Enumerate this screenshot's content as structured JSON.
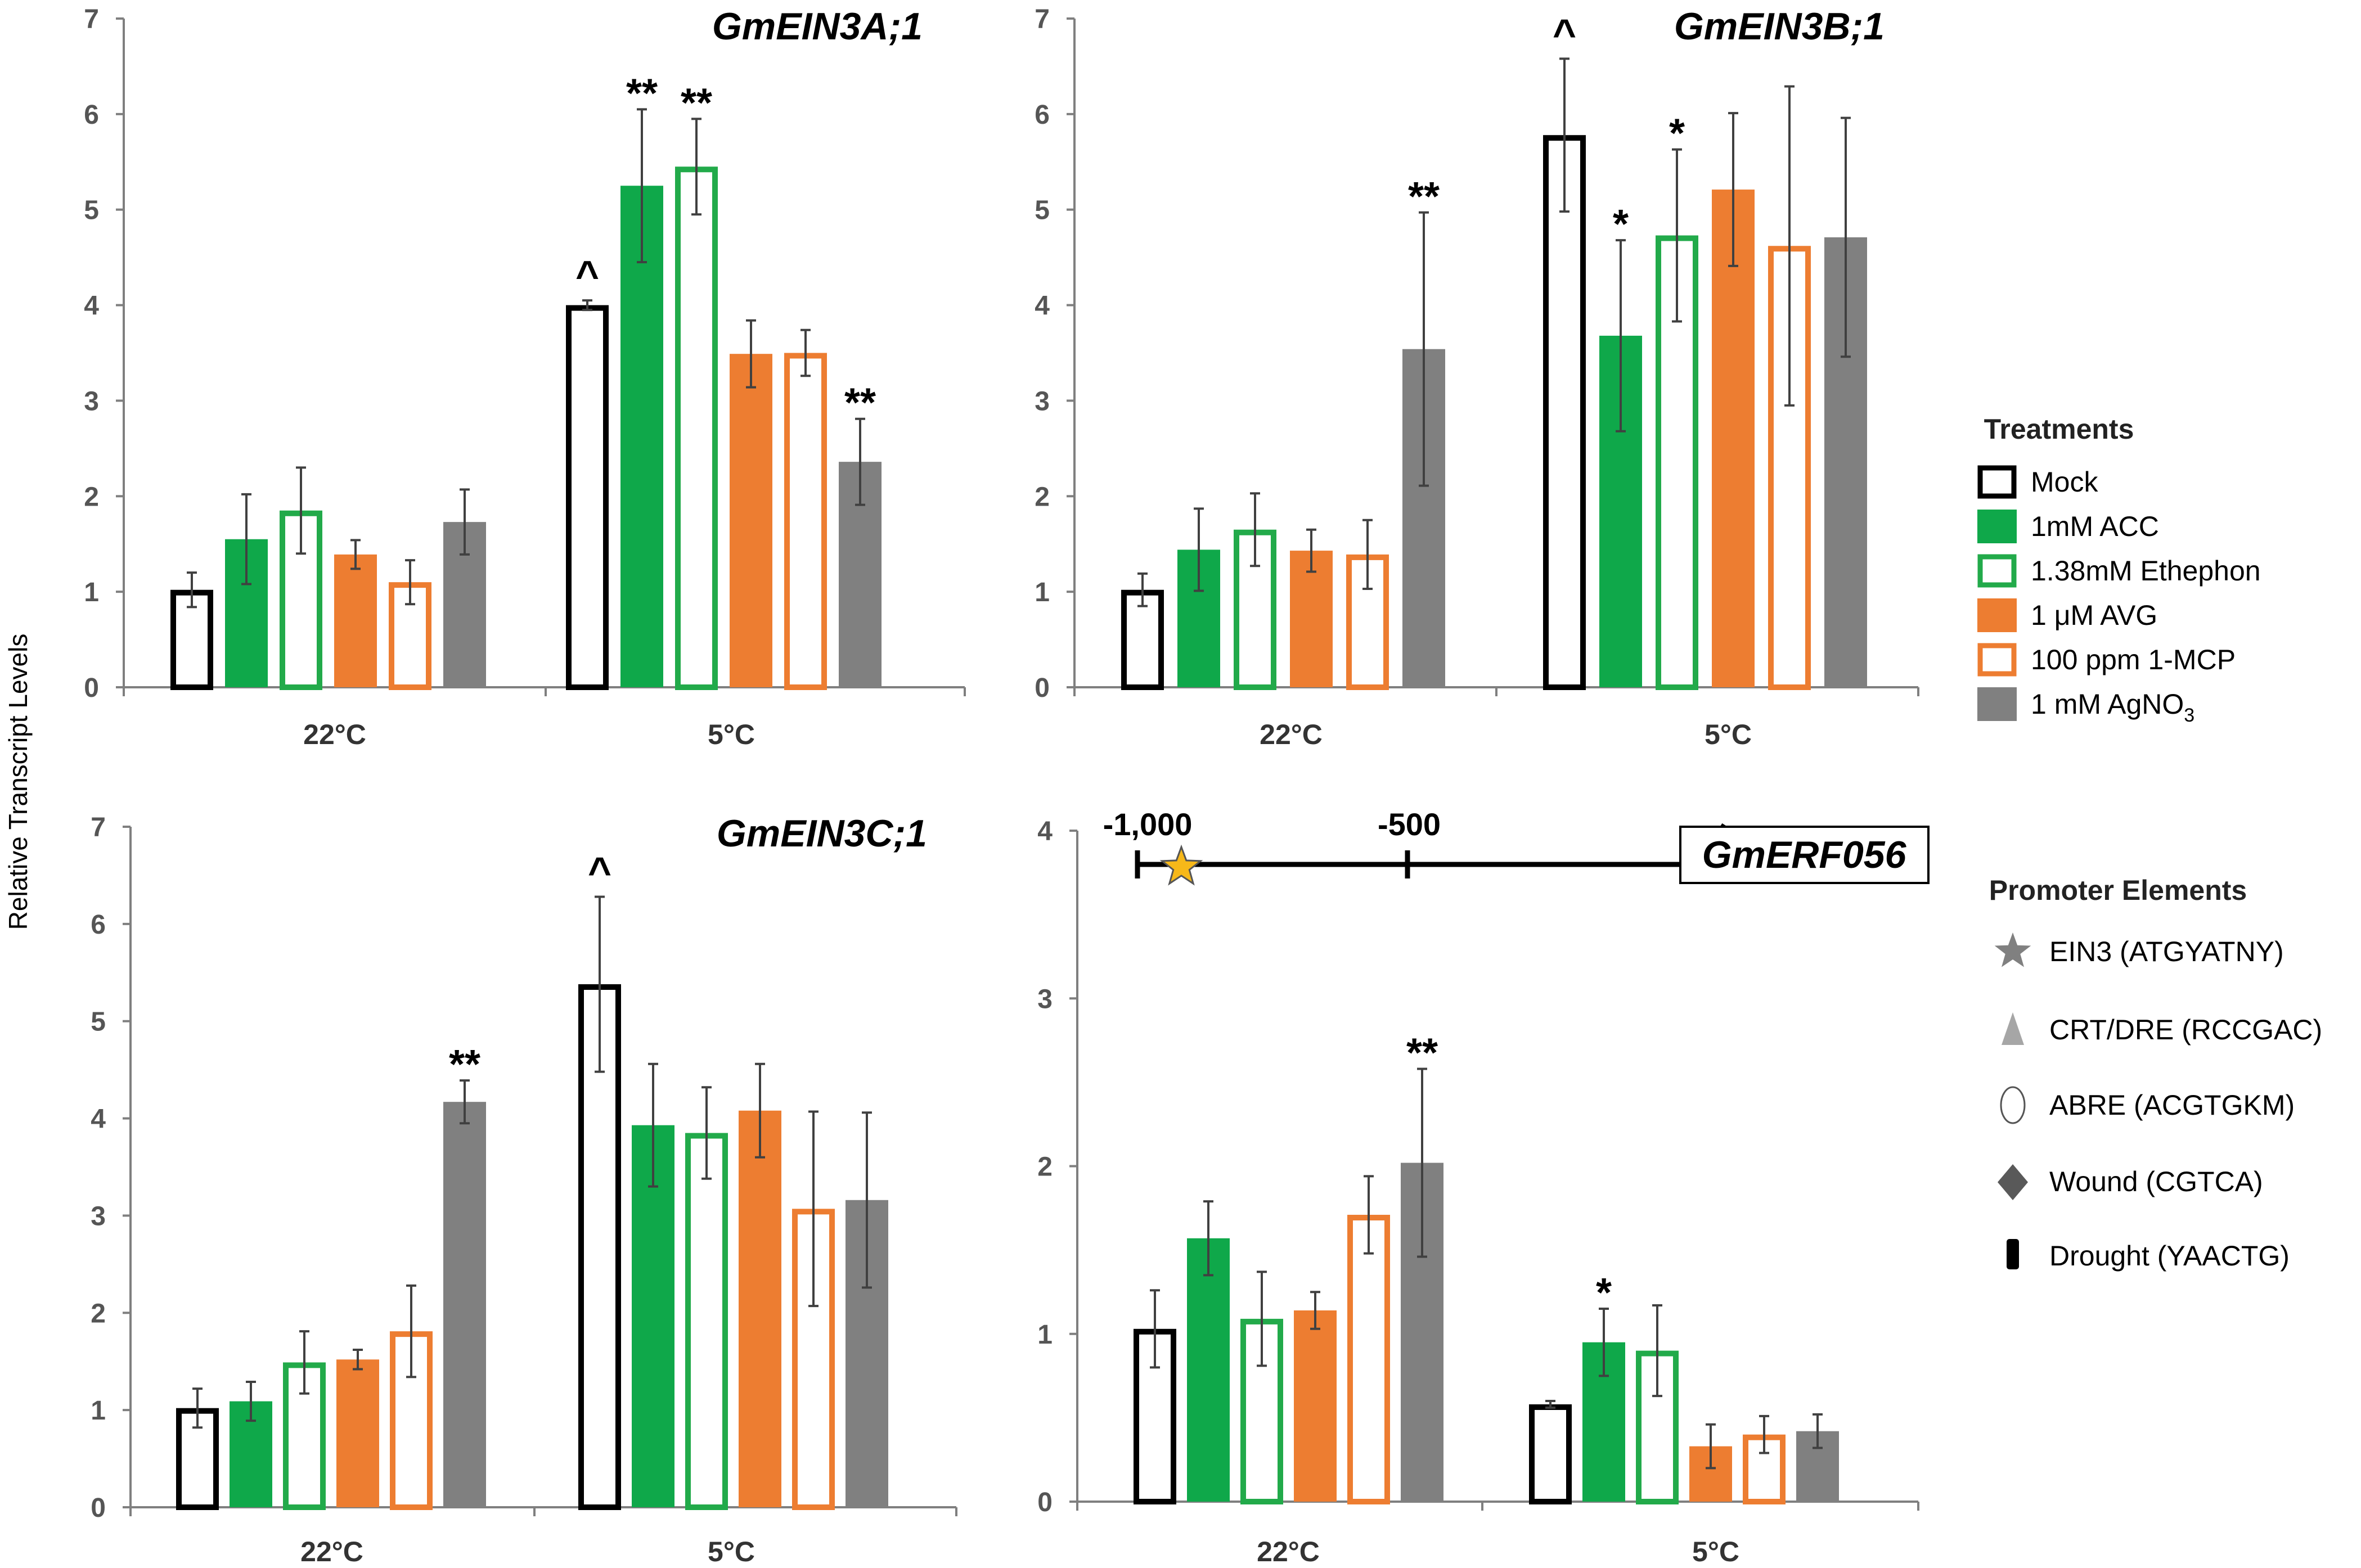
{
  "ylabel": "Relative Transcript Levels",
  "colors": {
    "mock": "#000000",
    "acc": "#0fa84a",
    "ethephon": "#22aa4a",
    "avg": "#ed7d31",
    "mcp": "#ed7d31",
    "agno3": "#808080",
    "axis": "#7f7f7f",
    "err": "#404040",
    "star": "#f7b819"
  },
  "treatments": [
    {
      "key": "mock",
      "label": "Mock",
      "filled": false
    },
    {
      "key": "acc",
      "label": "1mM ACC",
      "filled": true
    },
    {
      "key": "ethephon",
      "label": "1.38mM Ethephon",
      "filled": false
    },
    {
      "key": "avg",
      "label": "1 μM AVG",
      "filled": true
    },
    {
      "key": "mcp",
      "label": "100 ppm 1-MCP",
      "filled": false
    },
    {
      "key": "agno3",
      "label": "1 mM AgNO",
      "sub": "3",
      "filled": true
    }
  ],
  "legend": {
    "treatments_title": "Treatments",
    "promoter_title": "Promoter Elements",
    "promoter_elements": [
      {
        "icon": "star-icon",
        "label": "EIN3 (ATGYATNY)"
      },
      {
        "icon": "triangle-icon",
        "label": "CRT/DRE (RCCGAC)"
      },
      {
        "icon": "ellipse-icon",
        "label": "ABRE (ACGTGKM)"
      },
      {
        "icon": "diamond-icon",
        "label": "Wound (CGTCA)"
      },
      {
        "icon": "drought-bar-icon",
        "label": "Drought (YAACTG)"
      }
    ]
  },
  "promoter_diagram": {
    "gene": "GmERF056",
    "marks": [
      "-1,000",
      "-500"
    ],
    "elements": [
      "EIN3"
    ]
  },
  "chart_data": [
    {
      "type": "bar",
      "title": "GmEIN3A;1",
      "categories": [
        "22°C",
        "5°C"
      ],
      "ylim": [
        0,
        7
      ],
      "yticks": [
        "0",
        "1",
        "2",
        "3",
        "4",
        "5",
        "6",
        "7"
      ],
      "series": [
        {
          "name": "Mock",
          "values": [
            1.02,
            4.0
          ],
          "errors": [
            0.18,
            0.05
          ],
          "annotations": [
            "",
            "^"
          ]
        },
        {
          "name": "1mM ACC",
          "values": [
            1.55,
            5.25
          ],
          "errors": [
            0.47,
            0.8
          ],
          "annotations": [
            "",
            "**"
          ]
        },
        {
          "name": "1.38mM Ethephon",
          "values": [
            1.85,
            5.45
          ],
          "errors": [
            0.45,
            0.5
          ],
          "annotations": [
            "",
            "**"
          ]
        },
        {
          "name": "1 μM AVG",
          "values": [
            1.39,
            3.49
          ],
          "errors": [
            0.15,
            0.35
          ],
          "annotations": [
            "",
            ""
          ]
        },
        {
          "name": "100 ppm 1-MCP",
          "values": [
            1.1,
            3.5
          ],
          "errors": [
            0.23,
            0.24
          ],
          "annotations": [
            "",
            ""
          ]
        },
        {
          "name": "1 mM AgNO3",
          "values": [
            1.73,
            2.36
          ],
          "errors": [
            0.34,
            0.45
          ],
          "annotations": [
            "",
            "**"
          ]
        }
      ]
    },
    {
      "type": "bar",
      "title": "GmEIN3B;1",
      "categories": [
        "22°C",
        "5°C"
      ],
      "ylim": [
        0,
        7
      ],
      "yticks": [
        "0",
        "1",
        "2",
        "3",
        "4",
        "5",
        "6",
        "7"
      ],
      "series": [
        {
          "name": "Mock",
          "values": [
            1.02,
            5.78
          ],
          "errors": [
            0.17,
            0.8
          ],
          "annotations": [
            "",
            "^"
          ]
        },
        {
          "name": "1mM ACC",
          "values": [
            1.44,
            3.68
          ],
          "errors": [
            0.43,
            1.0
          ],
          "annotations": [
            "",
            "*"
          ]
        },
        {
          "name": "1.38mM Ethephon",
          "values": [
            1.65,
            4.73
          ],
          "errors": [
            0.38,
            0.9
          ],
          "annotations": [
            "",
            "*"
          ]
        },
        {
          "name": "1 μM AVG",
          "values": [
            1.43,
            5.21
          ],
          "errors": [
            0.22,
            0.8
          ],
          "annotations": [
            "",
            ""
          ]
        },
        {
          "name": "100 ppm 1-MCP",
          "values": [
            1.39,
            4.62
          ],
          "errors": [
            0.36,
            1.67
          ],
          "annotations": [
            "",
            ""
          ]
        },
        {
          "name": "1 mM AgNO3",
          "values": [
            3.54,
            4.71
          ],
          "errors": [
            1.43,
            1.25
          ],
          "annotations": [
            "**",
            ""
          ]
        }
      ]
    },
    {
      "type": "bar",
      "title": "GmEIN3C;1",
      "categories": [
        "22°C",
        "5°C"
      ],
      "ylim": [
        0,
        7
      ],
      "yticks": [
        "0",
        "1",
        "2",
        "3",
        "4",
        "5",
        "6",
        "7"
      ],
      "series": [
        {
          "name": "Mock",
          "values": [
            1.02,
            5.38
          ],
          "errors": [
            0.2,
            0.9
          ],
          "annotations": [
            "",
            "^"
          ]
        },
        {
          "name": "1mM ACC",
          "values": [
            1.09,
            3.93
          ],
          "errors": [
            0.2,
            0.63
          ],
          "annotations": [
            "",
            ""
          ]
        },
        {
          "name": "1.38mM Ethephon",
          "values": [
            1.49,
            3.85
          ],
          "errors": [
            0.32,
            0.47
          ],
          "annotations": [
            "",
            ""
          ]
        },
        {
          "name": "1 μM AVG",
          "values": [
            1.52,
            4.08
          ],
          "errors": [
            0.1,
            0.48
          ],
          "annotations": [
            "",
            ""
          ]
        },
        {
          "name": "100 ppm 1-MCP",
          "values": [
            1.81,
            3.07
          ],
          "errors": [
            0.47,
            1.0
          ],
          "annotations": [
            "",
            ""
          ]
        },
        {
          "name": "1 mM AgNO3",
          "values": [
            4.17,
            3.16
          ],
          "errors": [
            0.22,
            0.9
          ],
          "annotations": [
            "**",
            ""
          ]
        }
      ]
    },
    {
      "type": "bar",
      "title": "GmERF056",
      "categories": [
        "22°C",
        "5°C"
      ],
      "ylim": [
        0,
        4
      ],
      "yticks": [
        "0",
        "1",
        "2",
        "3",
        "4"
      ],
      "series": [
        {
          "name": "Mock",
          "values": [
            1.03,
            0.58
          ],
          "errors": [
            0.23,
            0.02
          ],
          "annotations": [
            "",
            ""
          ]
        },
        {
          "name": "1mM ACC",
          "values": [
            1.57,
            0.95
          ],
          "errors": [
            0.22,
            0.2
          ],
          "annotations": [
            "",
            "*"
          ]
        },
        {
          "name": "1.38mM Ethephon",
          "values": [
            1.09,
            0.9
          ],
          "errors": [
            0.28,
            0.27
          ],
          "annotations": [
            "",
            ""
          ]
        },
        {
          "name": "1 μM AVG",
          "values": [
            1.14,
            0.33
          ],
          "errors": [
            0.11,
            0.13
          ],
          "annotations": [
            "",
            ""
          ]
        },
        {
          "name": "100 ppm 1-MCP",
          "values": [
            1.71,
            0.4
          ],
          "errors": [
            0.23,
            0.11
          ],
          "annotations": [
            "",
            ""
          ]
        },
        {
          "name": "1 mM AgNO3",
          "values": [
            2.02,
            0.42
          ],
          "errors": [
            0.56,
            0.1
          ],
          "annotations": [
            "**",
            ""
          ]
        }
      ]
    }
  ]
}
